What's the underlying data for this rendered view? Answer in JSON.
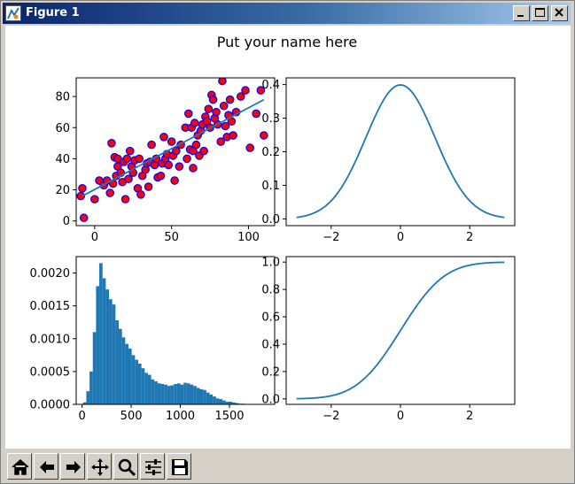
{
  "window": {
    "title": "Figure 1",
    "controls": [
      "minimize",
      "maximize",
      "close"
    ]
  },
  "figure": {
    "suptitle": "Put your name here"
  },
  "toolbar": {
    "buttons": [
      {
        "name": "home",
        "icon": "home-icon"
      },
      {
        "name": "back",
        "icon": "arrow-left-icon"
      },
      {
        "name": "forward",
        "icon": "arrow-right-icon"
      },
      {
        "name": "pan",
        "icon": "move-icon"
      },
      {
        "name": "zoom",
        "icon": "magnifier-icon"
      },
      {
        "name": "configure",
        "icon": "sliders-icon"
      },
      {
        "name": "save",
        "icon": "save-icon"
      }
    ]
  },
  "chart_data": [
    {
      "type": "scatter",
      "xlim": [
        -12,
        117
      ],
      "ylim": [
        -3,
        92
      ],
      "xticks": [
        0,
        50,
        100
      ],
      "yticks": [
        0,
        20,
        40,
        60,
        80
      ],
      "marker_face": "#ff0000",
      "marker_edge": "#0000ff",
      "line_color": "#1f77b4",
      "points": [
        [
          -9,
          16
        ],
        [
          -8,
          21
        ],
        [
          -7,
          2
        ],
        [
          0,
          14
        ],
        [
          3,
          26
        ],
        [
          6,
          23
        ],
        [
          8,
          26
        ],
        [
          10,
          18
        ],
        [
          11,
          50
        ],
        [
          12,
          24
        ],
        [
          13,
          41
        ],
        [
          14,
          29
        ],
        [
          15,
          35
        ],
        [
          15,
          40
        ],
        [
          17,
          31
        ],
        [
          18,
          25
        ],
        [
          19,
          38
        ],
        [
          20,
          14
        ],
        [
          21,
          40
        ],
        [
          22,
          27
        ],
        [
          23,
          45
        ],
        [
          24,
          35
        ],
        [
          25,
          31
        ],
        [
          26,
          39
        ],
        [
          28,
          21
        ],
        [
          29,
          40
        ],
        [
          30,
          17
        ],
        [
          31,
          29
        ],
        [
          33,
          33
        ],
        [
          34,
          37
        ],
        [
          35,
          22
        ],
        [
          36,
          38
        ],
        [
          37,
          49
        ],
        [
          39,
          36
        ],
        [
          40,
          40
        ],
        [
          41,
          28
        ],
        [
          43,
          29
        ],
        [
          44,
          37
        ],
        [
          45,
          54
        ],
        [
          46,
          40
        ],
        [
          47,
          43
        ],
        [
          48,
          36
        ],
        [
          50,
          51
        ],
        [
          51,
          42
        ],
        [
          52,
          26
        ],
        [
          53,
          45
        ],
        [
          55,
          35
        ],
        [
          56,
          49
        ],
        [
          59,
          60
        ],
        [
          60,
          40
        ],
        [
          61,
          69
        ],
        [
          62,
          46
        ],
        [
          63,
          60
        ],
        [
          64,
          34
        ],
        [
          64,
          45
        ],
        [
          65,
          63
        ],
        [
          66,
          49
        ],
        [
          67,
          55
        ],
        [
          68,
          42
        ],
        [
          69,
          58
        ],
        [
          70,
          62
        ],
        [
          71,
          45
        ],
        [
          72,
          67
        ],
        [
          73,
          64
        ],
        [
          74,
          72
        ],
        [
          75,
          60
        ],
        [
          76,
          81
        ],
        [
          77,
          78
        ],
        [
          78,
          66
        ],
        [
          79,
          70
        ],
        [
          80,
          62
        ],
        [
          82,
          51
        ],
        [
          83,
          90
        ],
        [
          84,
          74
        ],
        [
          85,
          61
        ],
        [
          86,
          54
        ],
        [
          87,
          68
        ],
        [
          88,
          78
        ],
        [
          89,
          64
        ],
        [
          90,
          55
        ],
        [
          92,
          70
        ],
        [
          95,
          80
        ],
        [
          98,
          84
        ],
        [
          101,
          47
        ],
        [
          105,
          69
        ],
        [
          108,
          84
        ],
        [
          110,
          55
        ]
      ],
      "fit_line": [
        [
          -8,
          16
        ],
        [
          110,
          78
        ]
      ]
    },
    {
      "type": "line",
      "function": "normal-pdf",
      "xlim": [
        -3.3,
        3.3
      ],
      "ylim": [
        -0.02,
        0.42
      ],
      "xticks": [
        -2,
        0,
        2
      ],
      "xtick_labels": [
        "−2",
        "0",
        "2"
      ],
      "yticks": [
        0.0,
        0.1,
        0.2,
        0.3,
        0.4
      ],
      "ytick_labels": [
        "0.0",
        "0.1",
        "0.2",
        "0.3",
        "0.4"
      ],
      "x_range": [
        -3,
        3
      ],
      "color": "#1f77b4"
    },
    {
      "type": "bar",
      "subtype": "histogram",
      "xlim": [
        -60,
        1960
      ],
      "ylim": [
        0,
        0.00225
      ],
      "xticks": [
        0,
        500,
        1000,
        1500
      ],
      "yticks": [
        0.0,
        0.0005,
        0.001,
        0.0015,
        0.002
      ],
      "ytick_labels": [
        "0.0000",
        "0.0005",
        "0.0010",
        "0.0015",
        "0.0020"
      ],
      "bin_start": 10,
      "bin_width": 33,
      "values": [
        3e-05,
        0.0002,
        0.0005,
        0.0011,
        0.0018,
        0.00215,
        0.00192,
        0.00175,
        0.0016,
        0.00152,
        0.00128,
        0.00115,
        0.00102,
        0.00092,
        0.00085,
        0.00075,
        0.00068,
        0.00062,
        0.00055,
        0.00048,
        0.00045,
        0.00038,
        0.00035,
        0.00032,
        0.00031,
        0.0003,
        0.00028,
        0.00029,
        0.00031,
        0.00032,
        0.0003,
        0.00033,
        0.00032,
        0.0003,
        0.00028,
        0.00025,
        0.00023,
        0.00022,
        0.00018,
        0.00015,
        0.00012,
        9e-05,
        8e-05,
        6e-05,
        4e-05,
        4e-05,
        3e-05,
        2e-05,
        1e-05,
        1e-05,
        5e-06
      ],
      "color": "#1f77b4"
    },
    {
      "type": "line",
      "function": "normal-cdf",
      "xlim": [
        -3.3,
        3.3
      ],
      "ylim": [
        -0.04,
        1.04
      ],
      "xticks": [
        -2,
        0,
        2
      ],
      "xtick_labels": [
        "−2",
        "0",
        "2"
      ],
      "yticks": [
        0.0,
        0.2,
        0.4,
        0.6,
        0.8,
        1.0
      ],
      "ytick_labels": [
        "0.0",
        "0.2",
        "0.4",
        "0.6",
        "0.8",
        "1.0"
      ],
      "x_range": [
        -3,
        3
      ],
      "color": "#1f77b4"
    }
  ]
}
